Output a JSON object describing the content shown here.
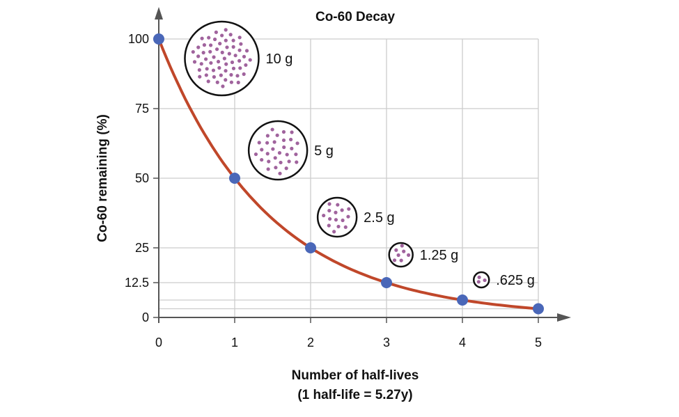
{
  "chart_data": {
    "type": "line",
    "title": "Co-60 Decay",
    "xlabel": "Number of half-lives",
    "xlabel_sub": "(1 half-life = 5.27y)",
    "ylabel": "Co-60 remaining (%)",
    "xlim": [
      0,
      5
    ],
    "ylim": [
      0,
      100
    ],
    "x_ticks": [
      "0",
      "1",
      "2",
      "3",
      "4",
      "5"
    ],
    "y_ticks": [
      {
        "value": 100,
        "label": "100"
      },
      {
        "value": 75,
        "label": "75"
      },
      {
        "value": 50,
        "label": "50"
      },
      {
        "value": 25,
        "label": "25"
      },
      {
        "value": 12.5,
        "label": "12.5"
      },
      {
        "value": 0,
        "label": "0"
      }
    ],
    "extra_gridlines_y": [
      6.25,
      3.125
    ],
    "grid": true,
    "x": [
      0,
      1,
      2,
      3,
      4,
      5
    ],
    "y": [
      100,
      50,
      25,
      12.5,
      6.25,
      3.125
    ],
    "annotations": [
      {
        "label": "10 g",
        "x": 0.83,
        "y": 93,
        "dots": 60
      },
      {
        "label": "5 g",
        "x": 1.57,
        "y": 60,
        "dots": 30
      },
      {
        "label": "2.5 g",
        "x": 2.35,
        "y": 36,
        "dots": 15
      },
      {
        "label": "1.25 g",
        "x": 3.19,
        "y": 22.5,
        "dots": 7
      },
      {
        "label": ".625 g",
        "x": 4.25,
        "y": 13.5,
        "dots": 3
      }
    ],
    "colors": {
      "curve": "#c0472a",
      "points": "#4a67b8",
      "atoms": "#a0639d",
      "grid": "#cccccc",
      "axis": "#555555"
    }
  }
}
